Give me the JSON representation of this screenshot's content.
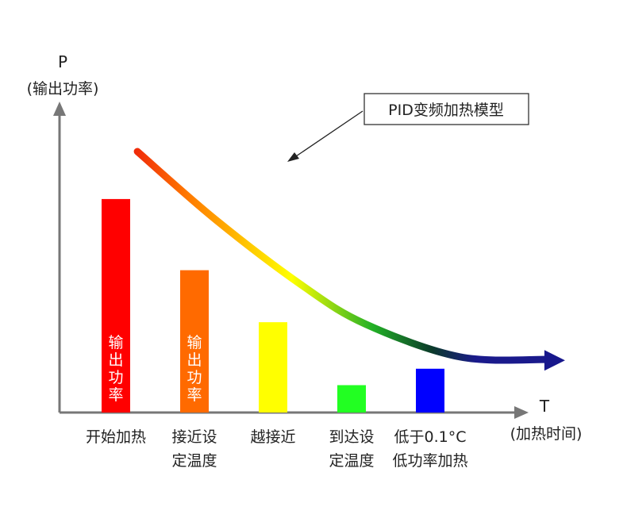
{
  "chart_data": {
    "type": "bar",
    "title": "",
    "y_axis": {
      "symbol": "P",
      "label": "(输出功率)"
    },
    "x_axis": {
      "symbol": "T",
      "label": "(加热时间)"
    },
    "categories": [
      [
        "开始加热"
      ],
      [
        "接近设",
        "定温度"
      ],
      [
        "越接近"
      ],
      [
        "到达设",
        "定温度"
      ],
      [
        "低于0.1°C",
        "低功率加热"
      ]
    ],
    "values": [
      78,
      52,
      33,
      10,
      16
    ],
    "ylim": [
      0,
      100
    ],
    "bar_colors": [
      "#ff0000",
      "#ff6a00",
      "#ffff00",
      "#22ff22",
      "#0000ff"
    ],
    "bar_inner_labels": [
      "输出功率",
      "输出功率",
      "",
      "",
      ""
    ],
    "curve": {
      "label": "PID变频加热模型",
      "points": [
        [
          0.4,
          100
        ],
        [
          1.4,
          75
        ],
        [
          2.5,
          51
        ],
        [
          3.3,
          37
        ],
        [
          4.5,
          25
        ],
        [
          5.6,
          24
        ]
      ],
      "gradient_colors": [
        "#e8000e",
        "#ff7a00",
        "#ffff00",
        "#22b026",
        "#0b3a2a",
        "#1a1a8c"
      ]
    },
    "grid": false,
    "legend": "none"
  }
}
